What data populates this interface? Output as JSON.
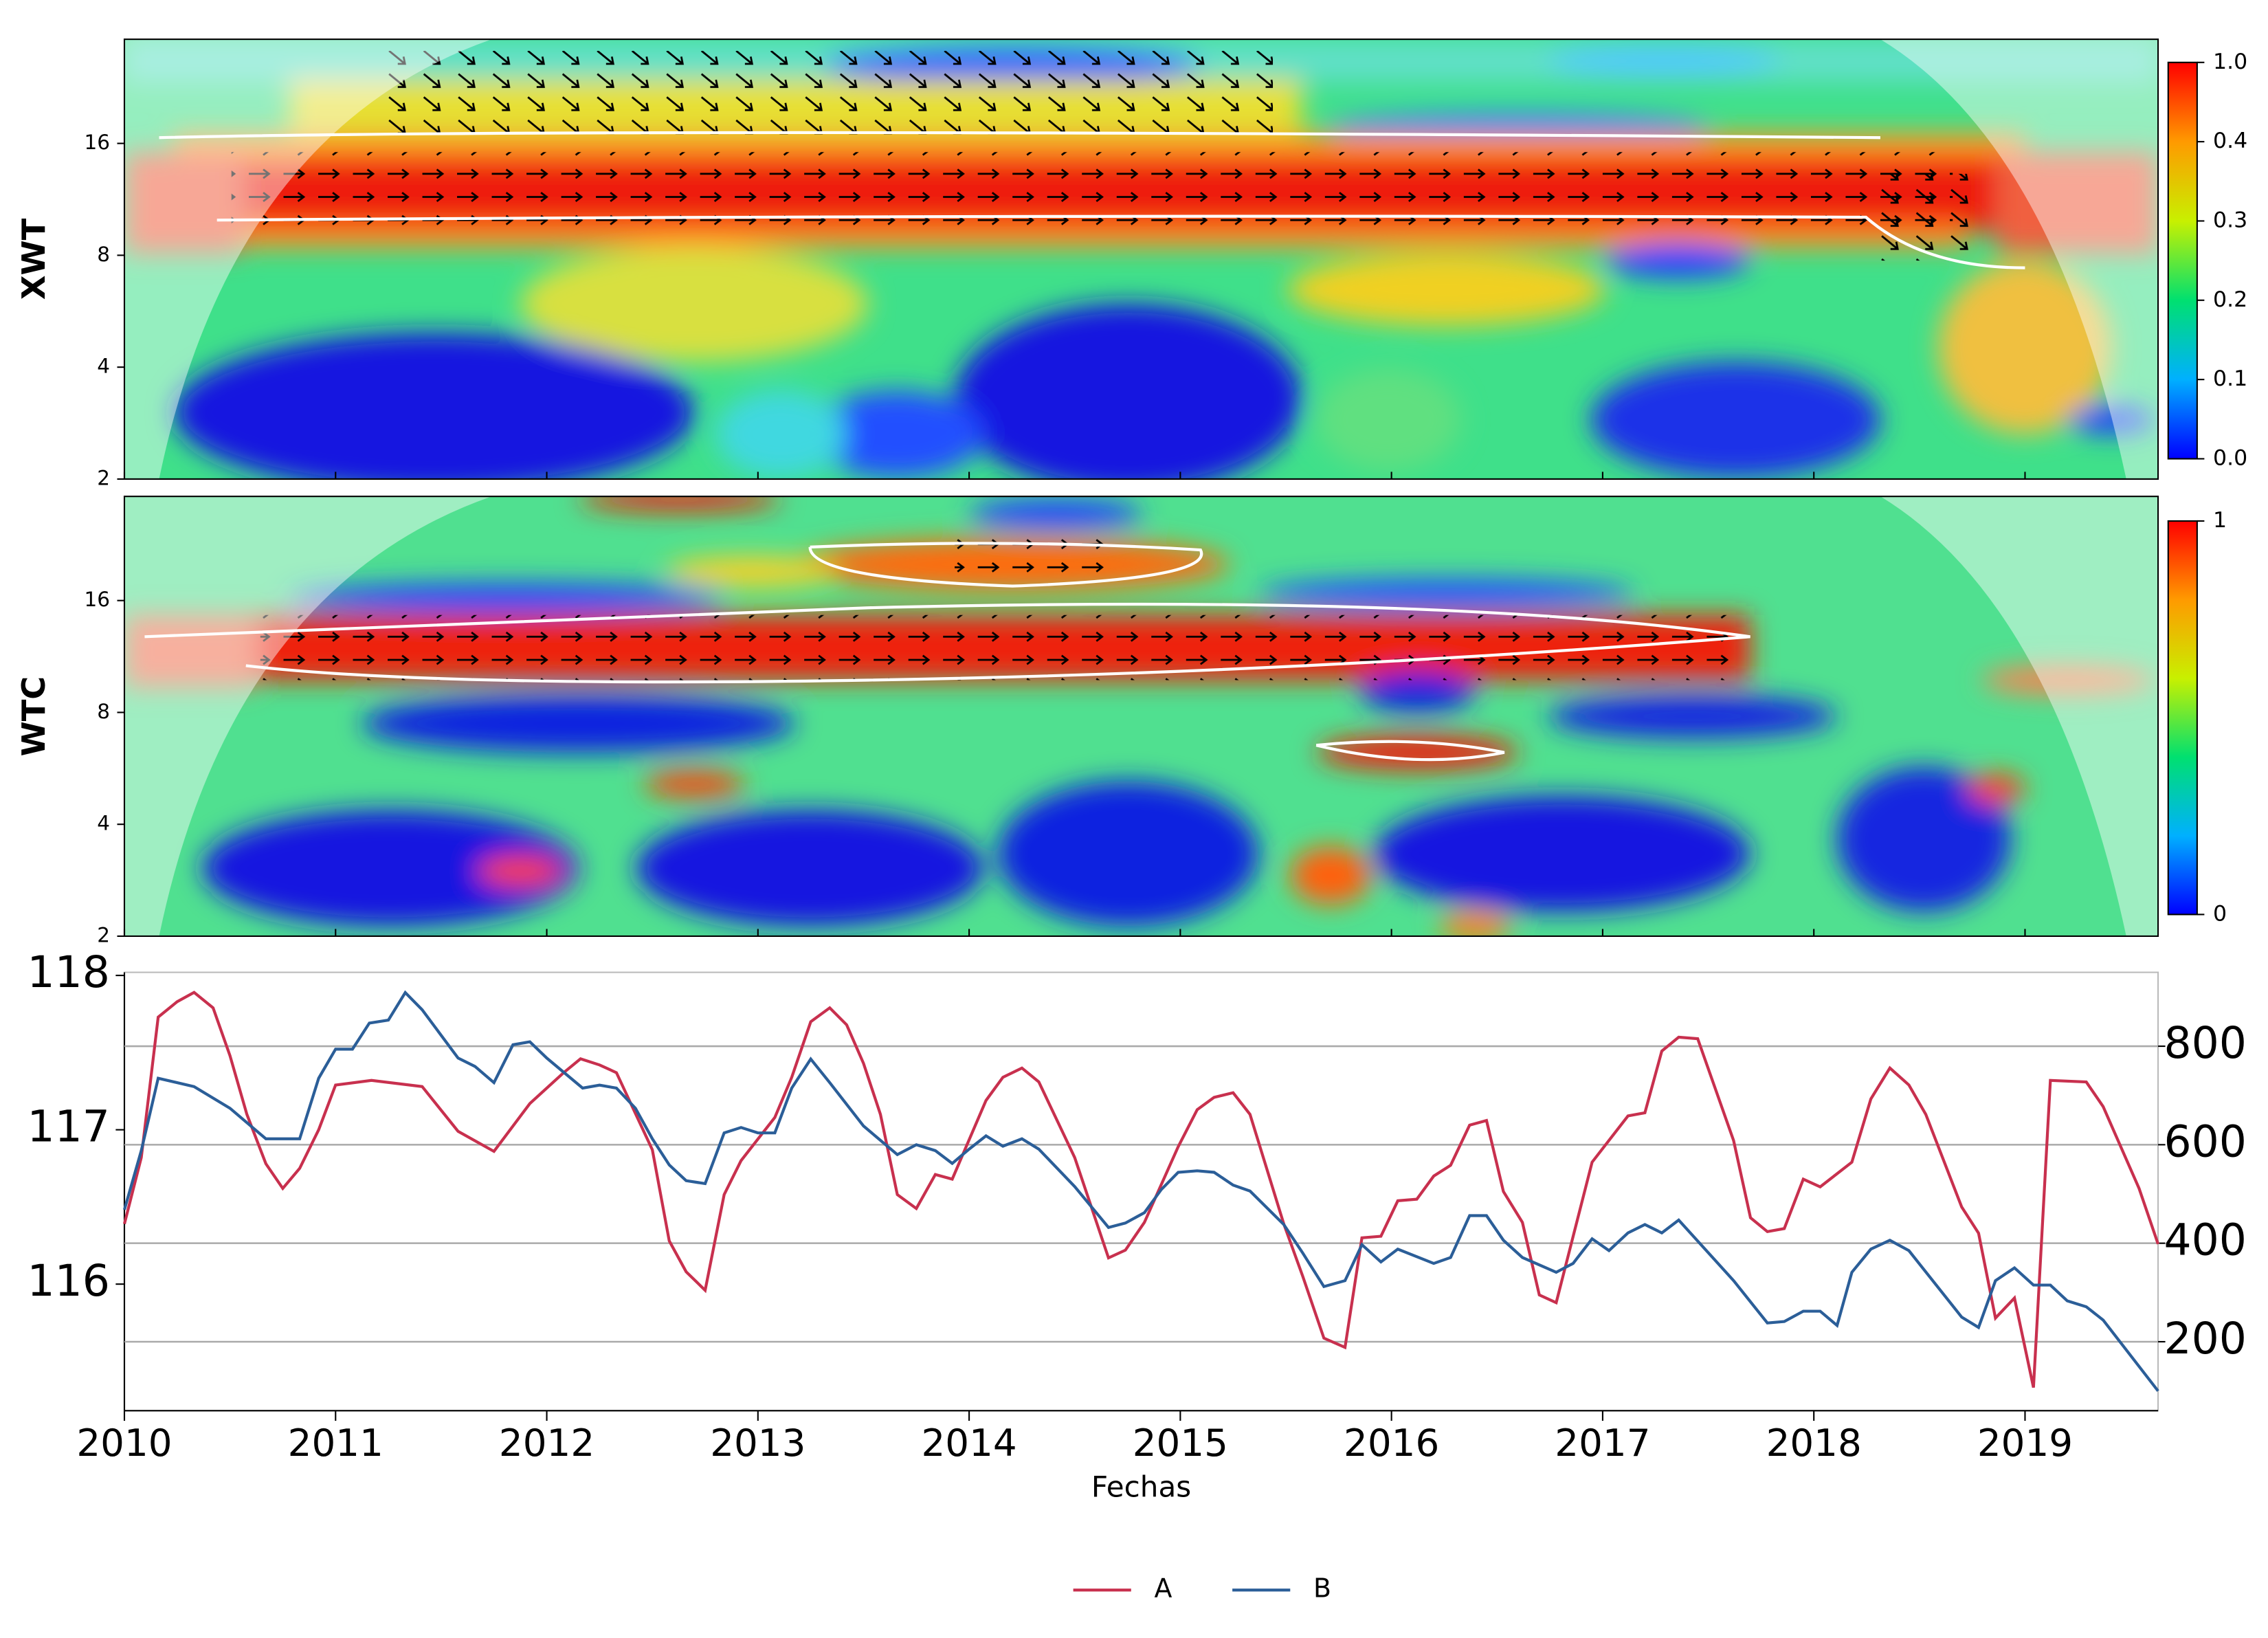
{
  "chart_data": [
    {
      "type": "heatmap",
      "ylabel": "XWT",
      "ylim": [
        2,
        30.5
      ],
      "yticks": [
        2,
        4,
        8,
        16
      ],
      "yscale": "log2",
      "colorbar_ticks": [
        {
          "value": 0,
          "label": "0.0"
        },
        0.1,
        0.2,
        0.3,
        0.4,
        {
          "value": 1,
          "label": "1.0"
        }
      ]
    },
    {
      "type": "heatmap",
      "ylabel": "WTC",
      "ylim": [
        2,
        30.5
      ],
      "yticks": [
        2,
        4,
        8,
        16
      ],
      "yscale": "log2",
      "colorbar_ticks": [
        0,
        1
      ]
    },
    {
      "type": "line",
      "xlabel": "Fechas",
      "xlim": [
        2010,
        2019.63
      ],
      "xticks": [
        2010,
        2011,
        2012,
        2013,
        2014,
        2015,
        2016,
        2017,
        2018,
        2019
      ],
      "ylim": [
        115.18,
        118.02
      ],
      "yticks": [
        116,
        117,
        118
      ],
      "y2lim": [
        60,
        950
      ],
      "y2ticks": [
        200,
        400,
        600,
        800
      ],
      "grid": "y2",
      "legend": "bottom",
      "series": [
        {
          "name": "A",
          "color": "#c8304e",
          "axis": "y",
          "x": [
            2010.0,
            2010.08,
            2010.16,
            2010.25,
            2010.33,
            2010.42,
            2010.5,
            2010.58,
            2010.67,
            2010.75,
            2010.83,
            2010.92,
            2011.0,
            2011.17,
            2011.41,
            2011.58,
            2011.75,
            2011.92,
            2012.08,
            2012.16,
            2012.25,
            2012.33,
            2012.5,
            2012.58,
            2012.66,
            2012.75,
            2012.84,
            2012.92,
            2013.08,
            2013.16,
            2013.25,
            2013.34,
            2013.42,
            2013.5,
            2013.58,
            2013.66,
            2013.75,
            2013.84,
            2013.92,
            2014.08,
            2014.16,
            2014.25,
            2014.33,
            2014.5,
            2014.66,
            2014.74,
            2014.83,
            2014.99,
            2015.08,
            2015.16,
            2015.25,
            2015.33,
            2015.49,
            2015.58,
            2015.68,
            2015.78,
            2015.86,
            2015.95,
            2016.03,
            2016.12,
            2016.2,
            2016.28,
            2016.37,
            2016.45,
            2016.53,
            2016.62,
            2016.7,
            2016.78,
            2016.95,
            2017.12,
            2017.2,
            2017.28,
            2017.36,
            2017.45,
            2017.62,
            2017.7,
            2017.78,
            2017.86,
            2017.95,
            2018.03,
            2018.18,
            2018.27,
            2018.36,
            2018.45,
            2018.53,
            2018.7,
            2018.78,
            2018.86,
            2018.95,
            2019.04,
            2019.12,
            2019.29,
            2019.37,
            2019.54,
            2019.63
          ],
          "values": [
            116.39,
            116.82,
            117.73,
            117.83,
            117.89,
            117.79,
            117.48,
            117.1,
            116.78,
            116.62,
            116.75,
            117.0,
            117.29,
            117.32,
            117.28,
            116.99,
            116.86,
            117.17,
            117.37,
            117.46,
            117.42,
            117.37,
            116.87,
            116.28,
            116.08,
            115.96,
            116.58,
            116.8,
            117.08,
            117.34,
            117.7,
            117.79,
            117.68,
            117.43,
            117.1,
            116.58,
            116.49,
            116.71,
            116.68,
            117.19,
            117.34,
            117.4,
            117.31,
            116.82,
            116.17,
            116.22,
            116.4,
            116.89,
            117.13,
            117.21,
            117.24,
            117.1,
            116.39,
            116.05,
            115.65,
            115.59,
            116.3,
            116.31,
            116.54,
            116.55,
            116.7,
            116.77,
            117.03,
            117.06,
            116.6,
            116.4,
            115.93,
            115.88,
            116.79,
            117.09,
            117.11,
            117.51,
            117.6,
            117.59,
            116.93,
            116.43,
            116.34,
            116.36,
            116.68,
            116.63,
            116.79,
            117.2,
            117.4,
            117.29,
            117.1,
            116.5,
            116.33,
            115.78,
            115.91,
            115.33,
            117.32,
            117.31,
            117.15,
            116.62,
            116.26
          ]
        },
        {
          "name": "B",
          "color": "#2b5e98",
          "axis": "y2",
          "x": [
            2010.0,
            2010.08,
            2010.16,
            2010.33,
            2010.5,
            2010.67,
            2010.83,
            2010.92,
            2011.0,
            2011.08,
            2011.16,
            2011.25,
            2011.33,
            2011.41,
            2011.58,
            2011.66,
            2011.75,
            2011.84,
            2011.92,
            2012.0,
            2012.17,
            2012.25,
            2012.33,
            2012.42,
            2012.5,
            2012.58,
            2012.66,
            2012.75,
            2012.84,
            2012.92,
            2013.0,
            2013.08,
            2013.16,
            2013.25,
            2013.34,
            2013.5,
            2013.66,
            2013.75,
            2013.84,
            2013.92,
            2014.0,
            2014.08,
            2014.16,
            2014.25,
            2014.33,
            2014.5,
            2014.66,
            2014.74,
            2014.83,
            2014.91,
            2014.99,
            2015.08,
            2015.16,
            2015.25,
            2015.33,
            2015.49,
            2015.58,
            2015.68,
            2015.78,
            2015.86,
            2015.95,
            2016.03,
            2016.2,
            2016.28,
            2016.37,
            2016.45,
            2016.53,
            2016.62,
            2016.78,
            2016.86,
            2016.95,
            2017.03,
            2017.12,
            2017.2,
            2017.28,
            2017.36,
            2017.62,
            2017.78,
            2017.86,
            2017.95,
            2018.03,
            2018.11,
            2018.18,
            2018.27,
            2018.36,
            2018.45,
            2018.7,
            2018.78,
            2018.86,
            2018.95,
            2019.04,
            2019.12,
            2019.2,
            2019.29,
            2019.37,
            2019.63
          ],
          "values": [
            468,
            588,
            735,
            718,
            674,
            612,
            612,
            735,
            794,
            794,
            847,
            853,
            909,
            874,
            776,
            759,
            726,
            803,
            809,
            776,
            715,
            721,
            715,
            674,
            612,
            559,
            527,
            521,
            624,
            635,
            624,
            624,
            715,
            774,
            726,
            638,
            580,
            600,
            588,
            562,
            591,
            618,
            597,
            612,
            591,
            515,
            432,
            441,
            462,
            509,
            544,
            547,
            544,
            518,
            506,
            438,
            380,
            312,
            324,
            397,
            362,
            388,
            359,
            371,
            456,
            456,
            406,
            371,
            341,
            359,
            409,
            385,
            421,
            438,
            421,
            447,
            324,
            238,
            241,
            262,
            262,
            233,
            341,
            388,
            406,
            385,
            250,
            229,
            324,
            350,
            315,
            315,
            283,
            271,
            244,
            100
          ]
        }
      ]
    }
  ]
}
